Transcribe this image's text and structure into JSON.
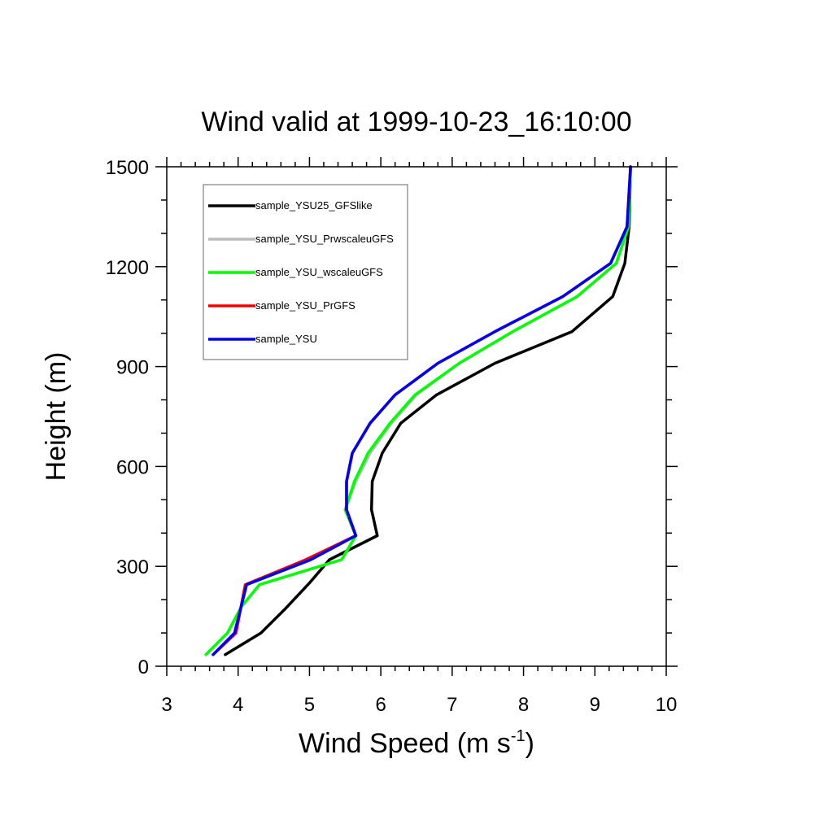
{
  "chart_data": {
    "type": "line",
    "title": "Wind valid at 1999-10-23_16:10:00",
    "xlabel": "Wind Speed (m s",
    "xlabel_superscript": "-1",
    "xlabel_suffix": ")",
    "ylabel": "Height (m)",
    "xlim": [
      3,
      10
    ],
    "ylim": [
      0,
      1500
    ],
    "xticks": [
      "3",
      "4",
      "5",
      "6",
      "7",
      "8",
      "9",
      "10"
    ],
    "yticks": [
      "0",
      "300",
      "600",
      "900",
      "1200",
      "1500"
    ],
    "legend_position": "top-left",
    "grid": false,
    "series": [
      {
        "name": "sample_YSU25_GFSlike",
        "color": "#000000",
        "points": [
          [
            3.82,
            35
          ],
          [
            4.32,
            100
          ],
          [
            4.65,
            170
          ],
          [
            5.0,
            250
          ],
          [
            5.28,
            320
          ],
          [
            5.95,
            392
          ],
          [
            5.87,
            470
          ],
          [
            5.88,
            555
          ],
          [
            6.02,
            640
          ],
          [
            6.28,
            730
          ],
          [
            6.78,
            815
          ],
          [
            7.6,
            910
          ],
          [
            8.68,
            1005
          ],
          [
            9.25,
            1110
          ],
          [
            9.42,
            1210
          ],
          [
            9.48,
            1320
          ],
          [
            9.5,
            1500
          ]
        ]
      },
      {
        "name": "sample_YSU_PrwscaleuGFS",
        "color": "#bbbbbb",
        "points": [
          [
            3.55,
            35
          ],
          [
            3.85,
            100
          ],
          [
            4.05,
            180
          ],
          [
            4.3,
            245
          ],
          [
            5.45,
            320
          ],
          [
            5.65,
            392
          ],
          [
            5.5,
            470
          ],
          [
            5.65,
            555
          ],
          [
            5.85,
            640
          ],
          [
            6.15,
            730
          ],
          [
            6.5,
            815
          ],
          [
            7.1,
            910
          ],
          [
            7.85,
            1005
          ],
          [
            8.75,
            1110
          ],
          [
            9.3,
            1210
          ],
          [
            9.47,
            1320
          ],
          [
            9.5,
            1500
          ]
        ]
      },
      {
        "name": "sample_YSU_wscaleuGFS",
        "color": "#00ff00",
        "points": [
          [
            3.55,
            35
          ],
          [
            3.85,
            100
          ],
          [
            4.05,
            180
          ],
          [
            4.3,
            245
          ],
          [
            5.45,
            320
          ],
          [
            5.65,
            392
          ],
          [
            5.5,
            470
          ],
          [
            5.63,
            555
          ],
          [
            5.82,
            640
          ],
          [
            6.13,
            730
          ],
          [
            6.48,
            815
          ],
          [
            7.1,
            910
          ],
          [
            7.85,
            1005
          ],
          [
            8.75,
            1110
          ],
          [
            9.3,
            1210
          ],
          [
            9.47,
            1320
          ],
          [
            9.5,
            1500
          ]
        ]
      },
      {
        "name": "sample_YSU_PrGFS",
        "color": "#ee0000",
        "points": [
          [
            3.65,
            35
          ],
          [
            3.97,
            100
          ],
          [
            4.1,
            245
          ],
          [
            4.95,
            320
          ],
          [
            5.65,
            392
          ],
          [
            5.52,
            470
          ],
          [
            5.52,
            555
          ],
          [
            5.6,
            640
          ],
          [
            5.85,
            730
          ],
          [
            6.2,
            815
          ],
          [
            6.8,
            910
          ],
          [
            7.6,
            1005
          ],
          [
            8.55,
            1110
          ],
          [
            9.22,
            1210
          ],
          [
            9.45,
            1320
          ],
          [
            9.5,
            1500
          ]
        ]
      },
      {
        "name": "sample_YSU",
        "color": "#0000ee",
        "points": [
          [
            3.65,
            35
          ],
          [
            3.95,
            100
          ],
          [
            4.12,
            245
          ],
          [
            5.02,
            320
          ],
          [
            5.65,
            392
          ],
          [
            5.52,
            470
          ],
          [
            5.52,
            555
          ],
          [
            5.6,
            640
          ],
          [
            5.85,
            730
          ],
          [
            6.2,
            815
          ],
          [
            6.8,
            910
          ],
          [
            7.6,
            1005
          ],
          [
            8.55,
            1110
          ],
          [
            9.22,
            1210
          ],
          [
            9.45,
            1320
          ],
          [
            9.5,
            1500
          ]
        ]
      }
    ]
  }
}
